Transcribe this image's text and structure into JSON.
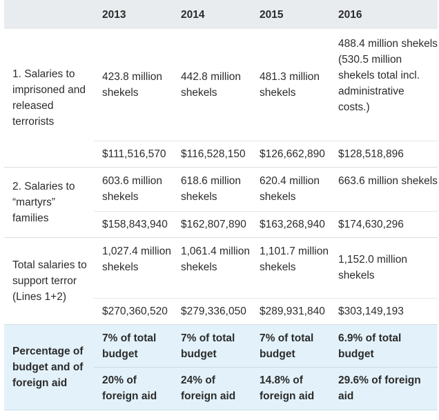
{
  "header": {
    "blank": "",
    "years": [
      "2013",
      "2014",
      "2015",
      "2016"
    ]
  },
  "rows": {
    "salaries_prisoners": {
      "label": "1. Salaries to imprisoned and released terrorists",
      "shekels": [
        "423.8 million shekels",
        "442.8 million shekels",
        "481.3 million shekels",
        "488.4 million shekels (530.5 million shekels total incl. administrative costs.)"
      ],
      "dollars": [
        "$111,516,570",
        "$116,528,150",
        "$126,662,890",
        "$128,518,896"
      ]
    },
    "salaries_martyrs": {
      "label": "2. Salaries to “martyrs” families",
      "shekels": [
        "603.6 million shekels",
        "618.6 million shekels",
        "620.4 million shekels",
        "663.6 million shekels"
      ],
      "dollars": [
        "$158,843,940",
        "$162,807,890",
        "$163,268,940",
        "$174,630,296"
      ]
    },
    "total": {
      "label": "Total salaries to support terror (Lines 1+2)",
      "shekels": [
        "1,027.4 million shekels",
        "1,061.4 million shekels",
        "1,101.7 million shekels",
        "1,152.0 million shekels"
      ],
      "dollars": [
        "$270,360,520",
        "$279,336,050",
        "$289,931,840",
        "$303,149,193"
      ]
    },
    "percentage": {
      "label": "Percentage of budget and of foreign aid",
      "budget": [
        "7% of total budget",
        "7% of total budget",
        "7% of total budget",
        "6.9% of total budget"
      ],
      "foreign_aid": [
        "20% of foreign aid",
        "24% of foreign aid",
        "14.8% of foreign aid",
        "29.6% of foreign aid"
      ]
    }
  }
}
